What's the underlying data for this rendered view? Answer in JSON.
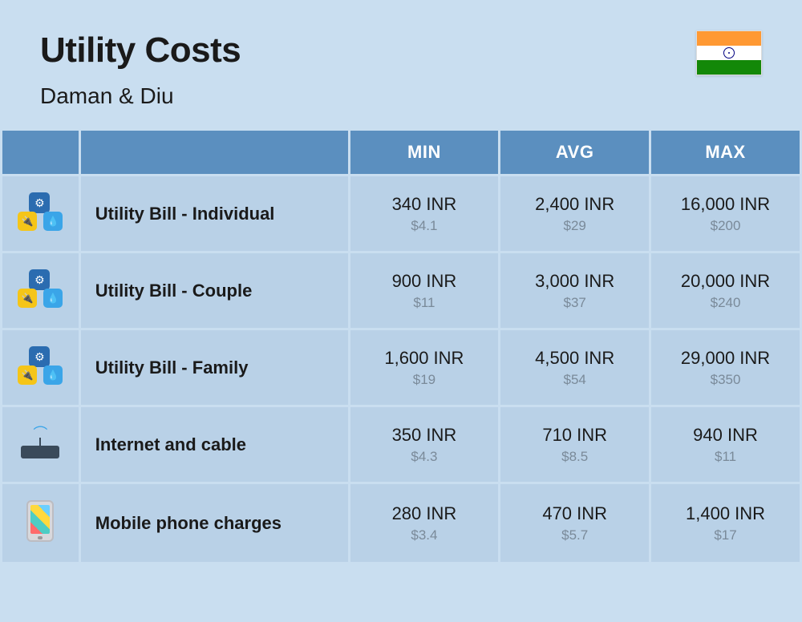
{
  "header": {
    "title": "Utility Costs",
    "subtitle": "Daman & Diu"
  },
  "flag": {
    "saffron": "#ff9933",
    "white": "#ffffff",
    "green": "#138808",
    "chakra": "#000080"
  },
  "colors": {
    "page_bg": "#c9def0",
    "header_bg": "#5b8fbf",
    "header_text": "#ffffff",
    "row_bg": "#b9d1e7",
    "text": "#1a1a1a",
    "subtext": "#7a8a99"
  },
  "table": {
    "columns": [
      "",
      "",
      "MIN",
      "AVG",
      "MAX"
    ],
    "rows": [
      {
        "icon": "utility",
        "label": "Utility Bill - Individual",
        "min": {
          "inr": "340 INR",
          "usd": "$4.1"
        },
        "avg": {
          "inr": "2,400 INR",
          "usd": "$29"
        },
        "max": {
          "inr": "16,000 INR",
          "usd": "$200"
        }
      },
      {
        "icon": "utility",
        "label": "Utility Bill - Couple",
        "min": {
          "inr": "900 INR",
          "usd": "$11"
        },
        "avg": {
          "inr": "3,000 INR",
          "usd": "$37"
        },
        "max": {
          "inr": "20,000 INR",
          "usd": "$240"
        }
      },
      {
        "icon": "utility",
        "label": "Utility Bill - Family",
        "min": {
          "inr": "1,600 INR",
          "usd": "$19"
        },
        "avg": {
          "inr": "4,500 INR",
          "usd": "$54"
        },
        "max": {
          "inr": "29,000 INR",
          "usd": "$350"
        }
      },
      {
        "icon": "router",
        "label": "Internet and cable",
        "min": {
          "inr": "350 INR",
          "usd": "$4.3"
        },
        "avg": {
          "inr": "710 INR",
          "usd": "$8.5"
        },
        "max": {
          "inr": "940 INR",
          "usd": "$11"
        }
      },
      {
        "icon": "phone",
        "label": "Mobile phone charges",
        "min": {
          "inr": "280 INR",
          "usd": "$3.4"
        },
        "avg": {
          "inr": "470 INR",
          "usd": "$5.7"
        },
        "max": {
          "inr": "1,400 INR",
          "usd": "$17"
        }
      }
    ]
  }
}
